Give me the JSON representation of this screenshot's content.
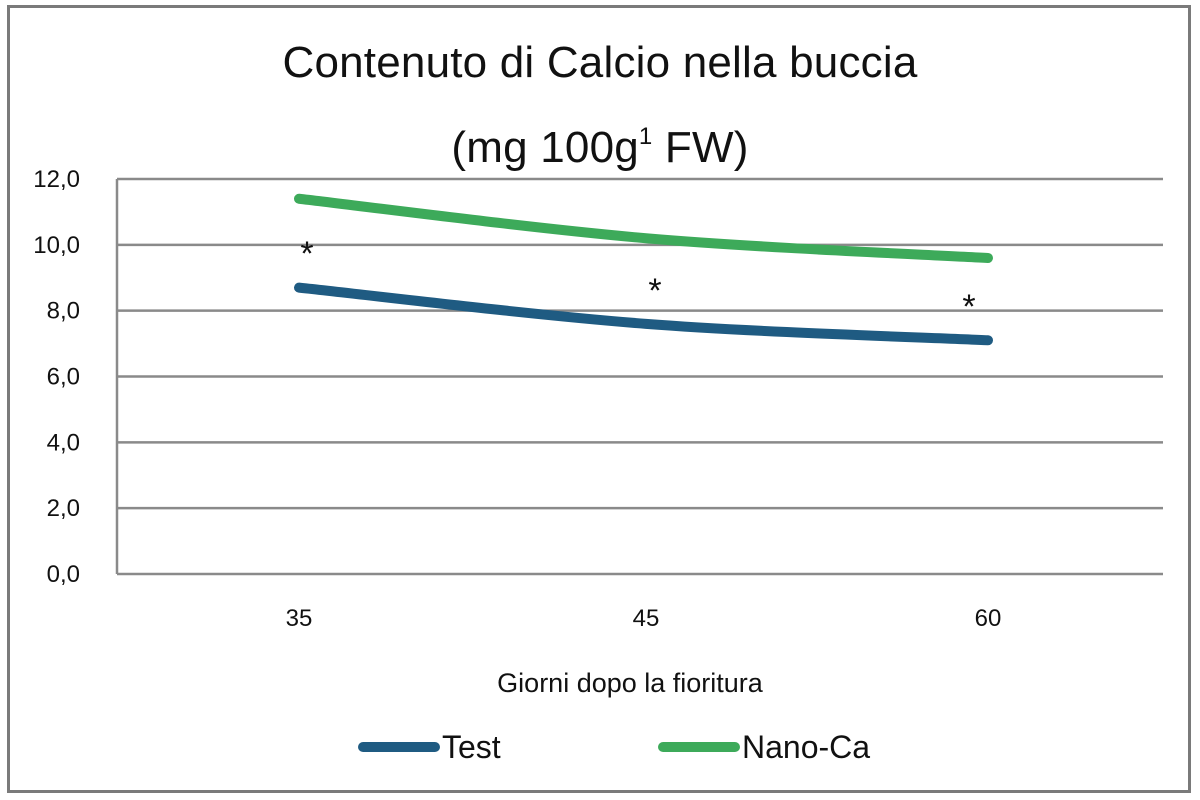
{
  "chart": {
    "title_line1": "Contenuto di Calcio nella buccia",
    "title_line2_pre": "(mg 100g",
    "title_line2_sup": "1",
    "title_line2_post": " FW)",
    "xlabel": "Giorni dopo la fioritura",
    "y_ticks": [
      "0,0",
      "2,0",
      "4,0",
      "6,0",
      "8,0",
      "10,0",
      "12,0"
    ],
    "x_ticks": [
      "35",
      "45",
      "60"
    ],
    "significance_marker": "*",
    "legend": [
      {
        "label": "Test",
        "color": "#1f5b82"
      },
      {
        "label": "Nano-Ca",
        "color": "#3daa5a"
      }
    ]
  },
  "chart_data": {
    "type": "line",
    "title": "Contenuto di Calcio nella buccia (mg 100g1 FW)",
    "xlabel": "Giorni dopo la fioritura",
    "ylabel": "",
    "categories": [
      "35",
      "45",
      "60"
    ],
    "series": [
      {
        "name": "Test",
        "color": "#1f5b82",
        "values": [
          8.7,
          7.6,
          7.1
        ]
      },
      {
        "name": "Nano-Ca",
        "color": "#3daa5a",
        "values": [
          11.4,
          10.2,
          9.6
        ]
      }
    ],
    "ylim": [
      0,
      12
    ],
    "y_tick_step": 2,
    "grid": "horizontal",
    "legend_position": "bottom",
    "annotations": [
      {
        "text": "*",
        "x": "35",
        "note": "significance marker between series"
      },
      {
        "text": "*",
        "x": "45",
        "note": "significance marker between series"
      },
      {
        "text": "*",
        "x": "60",
        "note": "significance marker between series"
      }
    ]
  }
}
